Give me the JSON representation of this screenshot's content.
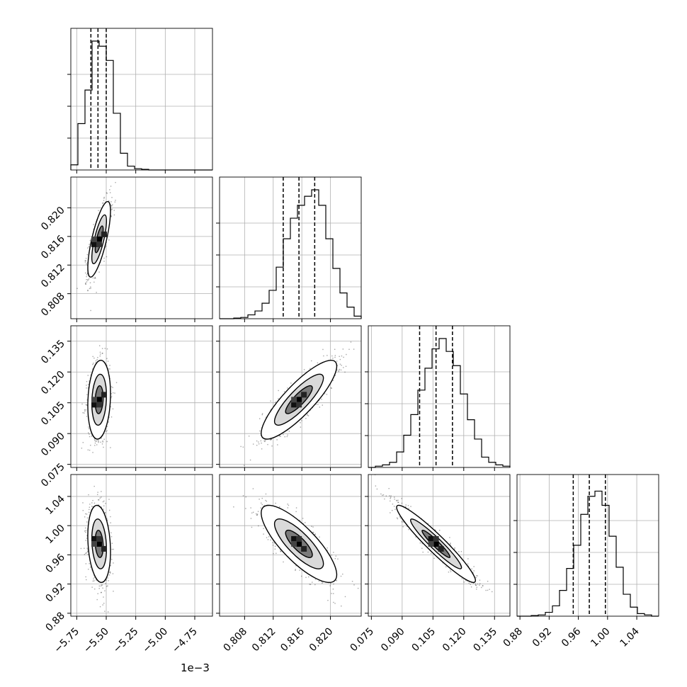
{
  "chart_data": {
    "type": "corner",
    "grid": true,
    "x_offset_label": "1e−3",
    "params": [
      {
        "range": [
          -5.8,
          -4.6
        ],
        "ticks": [
          "−5.75",
          "−5.50",
          "−5.25",
          "−5.00",
          "−4.75"
        ],
        "tick_values": [
          -5.75,
          -5.5,
          -5.25,
          -5.0,
          -4.75
        ],
        "quantiles": [
          -5.63,
          -5.57,
          -5.5
        ],
        "hist_counts": [
          0.04,
          0.36,
          0.62,
          1.0,
          0.96,
          0.85,
          0.44,
          0.13,
          0.03,
          0.01,
          0.005,
          0.0,
          0.0,
          0.0,
          0.0,
          0.0,
          0.0,
          0.0,
          0.0,
          0.0
        ],
        "center": -5.56,
        "sd": 0.04
      },
      {
        "range": [
          0.8045,
          0.8243
        ],
        "ticks": [
          "0.808",
          "0.812",
          "0.816",
          "0.820"
        ],
        "tick_values": [
          0.808,
          0.812,
          0.816,
          0.82
        ],
        "quantiles": [
          0.8134,
          0.8156,
          0.8178
        ],
        "hist_counts": [
          0.0,
          0.0,
          0.005,
          0.01,
          0.03,
          0.06,
          0.12,
          0.22,
          0.4,
          0.62,
          0.78,
          0.88,
          0.95,
          1.0,
          0.88,
          0.62,
          0.39,
          0.2,
          0.09,
          0.02
        ],
        "center": 0.8156,
        "sd": 0.0022
      },
      {
        "range": [
          0.0735,
          0.1425
        ],
        "ticks": [
          "0.075",
          "0.090",
          "0.105",
          "0.120",
          "0.135"
        ],
        "tick_values": [
          0.075,
          0.09,
          0.105,
          0.12,
          0.135
        ],
        "quantiles": [
          0.0985,
          0.1065,
          0.1145
        ],
        "hist_counts": [
          0.0,
          0.01,
          0.02,
          0.04,
          0.12,
          0.25,
          0.41,
          0.6,
          0.77,
          0.92,
          1.0,
          0.9,
          0.79,
          0.57,
          0.37,
          0.22,
          0.08,
          0.04,
          0.02,
          0.01
        ],
        "center": 0.1065,
        "sd": 0.008
      },
      {
        "range": [
          0.876,
          1.07
        ],
        "ticks": [
          "0.88",
          "0.92",
          "0.96",
          "1.00",
          "1.04"
        ],
        "tick_values": [
          0.88,
          0.92,
          0.96,
          1.0,
          1.04
        ],
        "quantiles": [
          0.953,
          0.975,
          0.997
        ],
        "hist_counts": [
          0.0,
          0.0,
          0.005,
          0.01,
          0.03,
          0.08,
          0.2,
          0.37,
          0.55,
          0.79,
          0.93,
          0.97,
          0.86,
          0.62,
          0.38,
          0.17,
          0.07,
          0.02,
          0.01,
          0.0
        ],
        "center": 0.975,
        "sd": 0.022
      }
    ],
    "correlations": {
      "1-0": 0.75,
      "2-0": 0.15,
      "2-1": 0.85,
      "3-0": -0.2,
      "3-1": -0.8,
      "3-2": -0.95
    }
  }
}
